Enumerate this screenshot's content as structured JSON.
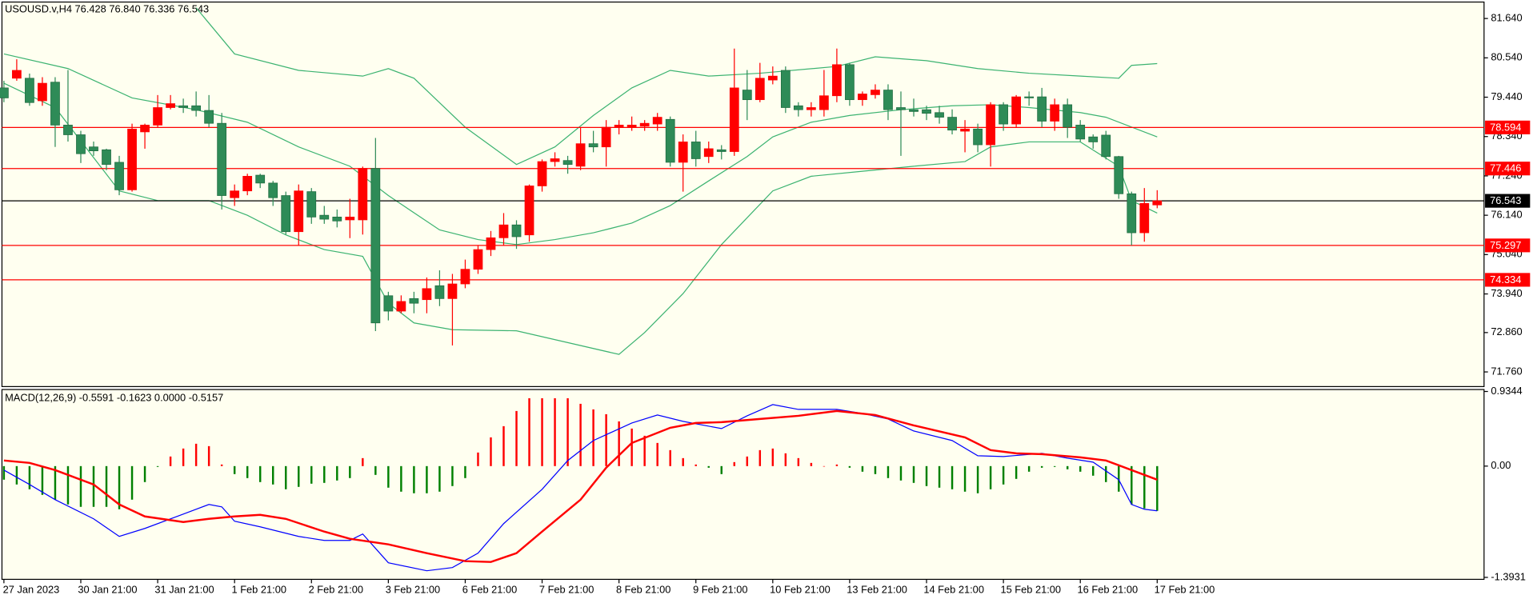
{
  "chart_data": {
    "type": "candlestick",
    "title": "USOUSD.v,H4  76.428 76.840 76.336 76.543",
    "categories": [
      "27 Jan 2023",
      null,
      null,
      null,
      null,
      null,
      "30 Jan 21:00",
      null,
      null,
      null,
      null,
      null,
      "31 Jan 21:00",
      null,
      null,
      null,
      null,
      null,
      "1 Feb 21:00",
      null,
      null,
      null,
      null,
      null,
      "2 Feb 21:00",
      null,
      null,
      null,
      null,
      null,
      "3 Feb 21:00",
      null,
      null,
      null,
      null,
      null,
      "6 Feb 21:00",
      null,
      null,
      null,
      null,
      null,
      "7 Feb 21:00",
      null,
      null,
      null,
      null,
      null,
      "8 Feb 21:00",
      null,
      null,
      null,
      null,
      null,
      "9 Feb 21:00",
      null,
      null,
      null,
      null,
      null,
      "10 Feb 21:00",
      null,
      null,
      null,
      null,
      null,
      "13 Feb 21:00",
      null,
      null,
      null,
      null,
      null,
      "14 Feb 21:00",
      null,
      null,
      null,
      null,
      null,
      "15 Feb 21:00",
      null,
      null,
      null,
      null,
      null,
      "16 Feb 21:00",
      null,
      null,
      null,
      null,
      null,
      "17 Feb 21:00"
    ],
    "open": [
      79.7,
      79.97,
      79.97,
      79.34,
      79.86,
      78.66,
      78.39,
      78.05,
      77.97,
      77.62,
      76.85,
      78.47,
      78.66,
      79.15,
      79.2,
      79.2,
      79.07,
      78.71,
      76.63,
      76.82,
      77.26,
      77.04,
      76.69,
      75.68,
      76.8,
      76.14,
      76.09,
      76.01,
      76.01,
      77.45,
      73.89,
      73.46,
      73.81,
      73.78,
      74.17,
      73.81,
      74.22,
      74.63,
      75.18,
      75.51,
      75.87,
      75.59,
      76.96,
      77.64,
      77.67,
      77.51,
      78.14,
      78.05,
      78.6,
      78.6,
      78.63,
      78.69,
      78.82,
      77.62,
      78.19,
      77.78,
      77.97,
      77.92,
      79.64,
      79.37,
      79.92,
      80.19,
      79.2,
      79.09,
      79.09,
      79.48,
      80.35,
      79.37,
      79.51,
      79.64,
      79.15,
      79.09,
      79.09,
      79.01,
      78.88,
      78.49,
      78.55,
      78.11,
      79.23,
      78.69,
      79.45,
      79.45,
      78.77,
      79.23,
      78.66,
      78.33,
      78.38,
      77.78,
      76.74,
      75.65,
      76.428
    ],
    "high": [
      79.9,
      80.5,
      80.1,
      80.0,
      80.0,
      80.2,
      78.5,
      78.2,
      78.0,
      77.8,
      78.7,
      78.7,
      79.5,
      79.5,
      79.4,
      79.6,
      79.5,
      79.0,
      77.0,
      77.3,
      77.3,
      77.1,
      76.8,
      77.0,
      76.9,
      76.4,
      76.3,
      76.6,
      77.5,
      78.3,
      74.0,
      73.9,
      74.0,
      74.4,
      74.6,
      74.5,
      74.9,
      75.3,
      75.7,
      76.2,
      76.0,
      77.0,
      77.7,
      77.9,
      77.8,
      78.6,
      78.5,
      78.8,
      78.8,
      78.9,
      78.8,
      79.0,
      78.9,
      78.4,
      78.5,
      78.2,
      78.1,
      80.8,
      80.2,
      80.4,
      80.3,
      80.3,
      79.3,
      79.3,
      80.2,
      80.8,
      80.4,
      79.6,
      79.8,
      79.8,
      79.6,
      79.4,
      79.2,
      79.2,
      79.1,
      78.8,
      78.7,
      79.3,
      79.3,
      79.5,
      79.6,
      79.7,
      79.4,
      79.4,
      78.8,
      78.4,
      78.5,
      77.8,
      76.8,
      76.9,
      76.84
    ],
    "low": [
      79.3,
      79.9,
      79.2,
      79.2,
      78.05,
      78.2,
      77.6,
      77.8,
      77.4,
      76.7,
      76.8,
      78.0,
      78.6,
      79.1,
      79.0,
      78.9,
      78.6,
      76.3,
      76.4,
      76.7,
      76.9,
      76.4,
      75.6,
      75.3,
      75.9,
      75.9,
      75.8,
      75.5,
      75.6,
      72.9,
      73.2,
      73.4,
      73.4,
      73.4,
      73.6,
      72.5,
      74.1,
      74.5,
      75.0,
      75.3,
      75.2,
      75.4,
      76.8,
      77.5,
      77.3,
      77.4,
      77.9,
      77.5,
      78.4,
      78.5,
      78.5,
      78.5,
      77.5,
      76.8,
      77.5,
      77.6,
      77.7,
      77.8,
      78.8,
      79.3,
      79.8,
      79.0,
      78.9,
      78.9,
      78.9,
      79.3,
      79.2,
      79.2,
      79.4,
      78.8,
      77.8,
      78.9,
      78.8,
      78.7,
      78.4,
      77.9,
      77.9,
      77.5,
      78.5,
      78.6,
      79.2,
      78.6,
      78.5,
      78.3,
      78.2,
      78.0,
      77.7,
      76.6,
      75.3,
      75.4,
      76.336
    ],
    "close": [
      79.42,
      80.19,
      79.29,
      79.83,
      78.66,
      78.39,
      77.86,
      77.94,
      77.56,
      76.85,
      78.55,
      78.66,
      79.15,
      79.26,
      79.15,
      79.07,
      78.71,
      76.69,
      76.82,
      77.23,
      77.04,
      76.63,
      75.68,
      76.82,
      76.09,
      76.03,
      75.98,
      76.09,
      77.45,
      73.13,
      73.46,
      73.73,
      73.68,
      74.09,
      73.81,
      74.22,
      74.63,
      75.18,
      75.51,
      75.87,
      75.54,
      76.96,
      77.64,
      77.72,
      77.56,
      78.14,
      78.05,
      78.6,
      78.66,
      78.66,
      78.71,
      78.88,
      77.62,
      78.19,
      77.72,
      78.0,
      77.92,
      79.7,
      79.37,
      79.97,
      80.03,
      79.15,
      79.09,
      79.15,
      79.48,
      80.35,
      79.37,
      79.53,
      79.64,
      79.09,
      79.09,
      79.04,
      78.99,
      78.88,
      78.52,
      78.55,
      78.11,
      79.23,
      78.69,
      79.45,
      79.42,
      78.77,
      79.23,
      78.6,
      78.27,
      78.19,
      77.78,
      76.74,
      75.65,
      76.47,
      76.543
    ],
    "up_color": "#ff0000",
    "down_color": "#2e8b57",
    "ylim": [
      71.35,
      82.1
    ],
    "yticks": [
      {
        "value": 81.64,
        "label": "81.640"
      },
      {
        "value": 80.54,
        "label": "80.540"
      },
      {
        "value": 79.44,
        "label": "79.440"
      },
      {
        "value": 78.34,
        "label": "78.340"
      },
      {
        "value": 77.24,
        "label": "77.240"
      },
      {
        "value": 76.14,
        "label": "76.140"
      },
      {
        "value": 75.04,
        "label": "75.040"
      },
      {
        "value": 73.94,
        "label": "73.940"
      },
      {
        "value": 72.86,
        "label": "72.860"
      },
      {
        "value": 71.76,
        "label": "71.760"
      }
    ],
    "bands": {
      "color": "#3cb371",
      "lines": [
        {
          "x": [
            15,
            18,
            23,
            28,
            30,
            32,
            36,
            40,
            43,
            46,
            49,
            52,
            55,
            59,
            65,
            68,
            72,
            76,
            80,
            84,
            87,
            88,
            90
          ],
          "values": [
            81.94,
            80.65,
            80.19,
            80.03,
            80.24,
            79.97,
            78.6,
            77.56,
            78.05,
            78.93,
            79.7,
            80.19,
            80.03,
            80.11,
            80.3,
            80.57,
            80.46,
            80.24,
            80.11,
            80.03,
            79.97,
            80.33,
            80.38
          ]
        },
        {
          "x": [
            0,
            5,
            10,
            15,
            19,
            23,
            27,
            30,
            34,
            37,
            40,
            43,
            46,
            49,
            52,
            55,
            58,
            60,
            63,
            66,
            70,
            74,
            77,
            80,
            84,
            86,
            90
          ],
          "values": [
            80.65,
            80.24,
            79.42,
            79.09,
            78.74,
            78.05,
            77.51,
            76.69,
            75.73,
            75.46,
            75.32,
            75.46,
            75.65,
            75.92,
            76.41,
            77.1,
            77.78,
            78.33,
            78.74,
            78.93,
            79.09,
            79.2,
            79.23,
            79.15,
            79.01,
            78.88,
            78.33
          ]
        },
        {
          "x": [
            0,
            4,
            9,
            12,
            16,
            19,
            22,
            25,
            28,
            30,
            32,
            35,
            40,
            44,
            48,
            50,
            53,
            56,
            60,
            63,
            67,
            71,
            75,
            77,
            80,
            84,
            87,
            88,
            90
          ],
          "values": [
            79.83,
            79.15,
            76.82,
            76.55,
            76.55,
            76.14,
            75.59,
            75.18,
            74.99,
            73.68,
            73.13,
            72.94,
            72.91,
            72.58,
            72.25,
            72.86,
            73.95,
            75.32,
            76.82,
            77.23,
            77.37,
            77.51,
            77.64,
            78.05,
            78.19,
            78.19,
            77.51,
            76.55,
            76.2
          ]
        }
      ]
    },
    "levels": [
      {
        "value": 78.594,
        "color": "#ff0000"
      },
      {
        "value": 77.446,
        "color": "#ff0000"
      },
      {
        "value": 76.543,
        "color": "#000000"
      },
      {
        "value": 75.297,
        "color": "#ff0000"
      },
      {
        "value": 74.334,
        "color": "#ff0000"
      }
    ],
    "macd": {
      "label": "MACD(12,26,9) -0.5591 -0.1623 0.0000 -0.5157",
      "ylim": [
        -1.3931,
        0.9344
      ],
      "yticks": [
        0.9344,
        {
          "value": 0,
          "label": "0.00"
        },
        -1.3931
      ],
      "pos_color": "#ff0000",
      "neg_color": "#008000",
      "histogram": [
        -0.17,
        -0.23,
        -0.29,
        -0.36,
        -0.42,
        -0.48,
        -0.51,
        -0.51,
        -0.51,
        -0.54,
        -0.42,
        -0.2,
        -0.01,
        0.12,
        0.22,
        0.28,
        0.25,
        0.02,
        -0.1,
        -0.15,
        -0.2,
        -0.23,
        -0.29,
        -0.26,
        -0.22,
        -0.21,
        -0.18,
        -0.15,
        0.1,
        -0.11,
        -0.27,
        -0.32,
        -0.34,
        -0.34,
        -0.32,
        -0.25,
        -0.15,
        0.17,
        0.36,
        0.5,
        0.69,
        0.85,
        0.85,
        0.85,
        0.85,
        0.78,
        0.71,
        0.65,
        0.56,
        0.47,
        0.38,
        0.29,
        0.2,
        0.1,
        0.02,
        -0.02,
        -0.1,
        0.05,
        0.12,
        0.2,
        0.22,
        0.16,
        0.1,
        0.04,
        0.0,
        0.02,
        -0.02,
        -0.07,
        -0.1,
        -0.15,
        -0.18,
        -0.21,
        -0.25,
        -0.27,
        -0.29,
        -0.32,
        -0.34,
        -0.29,
        -0.23,
        -0.16,
        -0.07,
        -0.02,
        -0.01,
        -0.04,
        -0.07,
        -0.12,
        -0.2,
        -0.32,
        -0.48,
        -0.53,
        -0.56
      ],
      "main": {
        "color": "#0000ff",
        "x": [
          0,
          2,
          4,
          7,
          9,
          11,
          14,
          16,
          17,
          18,
          20,
          23,
          25,
          27,
          28,
          29,
          30,
          33,
          35,
          37,
          39,
          42,
          44,
          46,
          49,
          51,
          53,
          56,
          58,
          60,
          62,
          65,
          67,
          69,
          71,
          74,
          76,
          78,
          81,
          83,
          85,
          87,
          88,
          89,
          90
        ],
        "values": [
          -0.05,
          -0.23,
          -0.42,
          -0.66,
          -0.88,
          -0.78,
          -0.6,
          -0.48,
          -0.51,
          -0.69,
          -0.76,
          -0.88,
          -0.93,
          -0.93,
          -0.85,
          -1.03,
          -1.21,
          -1.31,
          -1.27,
          -1.09,
          -0.72,
          -0.29,
          0.07,
          0.32,
          0.54,
          0.64,
          0.56,
          0.47,
          0.63,
          0.77,
          0.71,
          0.71,
          0.66,
          0.59,
          0.44,
          0.32,
          0.13,
          0.12,
          0.16,
          0.1,
          0.05,
          -0.17,
          -0.48,
          -0.54,
          -0.56
        ]
      },
      "signal": {
        "color": "#ff0000",
        "x": [
          0,
          2,
          4,
          7,
          9,
          11,
          14,
          16,
          18,
          20,
          22,
          25,
          27,
          30,
          33,
          36,
          38,
          40,
          42,
          45,
          47,
          49,
          52,
          54,
          56,
          59,
          62,
          65,
          68,
          71,
          75,
          77,
          79,
          81,
          84,
          86,
          88,
          90
        ],
        "values": [
          0.07,
          0.04,
          -0.05,
          -0.23,
          -0.48,
          -0.63,
          -0.7,
          -0.66,
          -0.63,
          -0.61,
          -0.66,
          -0.82,
          -0.91,
          -0.98,
          -1.09,
          -1.19,
          -1.2,
          -1.09,
          -0.82,
          -0.42,
          -0.02,
          0.29,
          0.48,
          0.54,
          0.55,
          0.59,
          0.63,
          0.69,
          0.64,
          0.51,
          0.36,
          0.2,
          0.16,
          0.15,
          0.11,
          0.07,
          -0.05,
          -0.17
        ]
      }
    }
  }
}
